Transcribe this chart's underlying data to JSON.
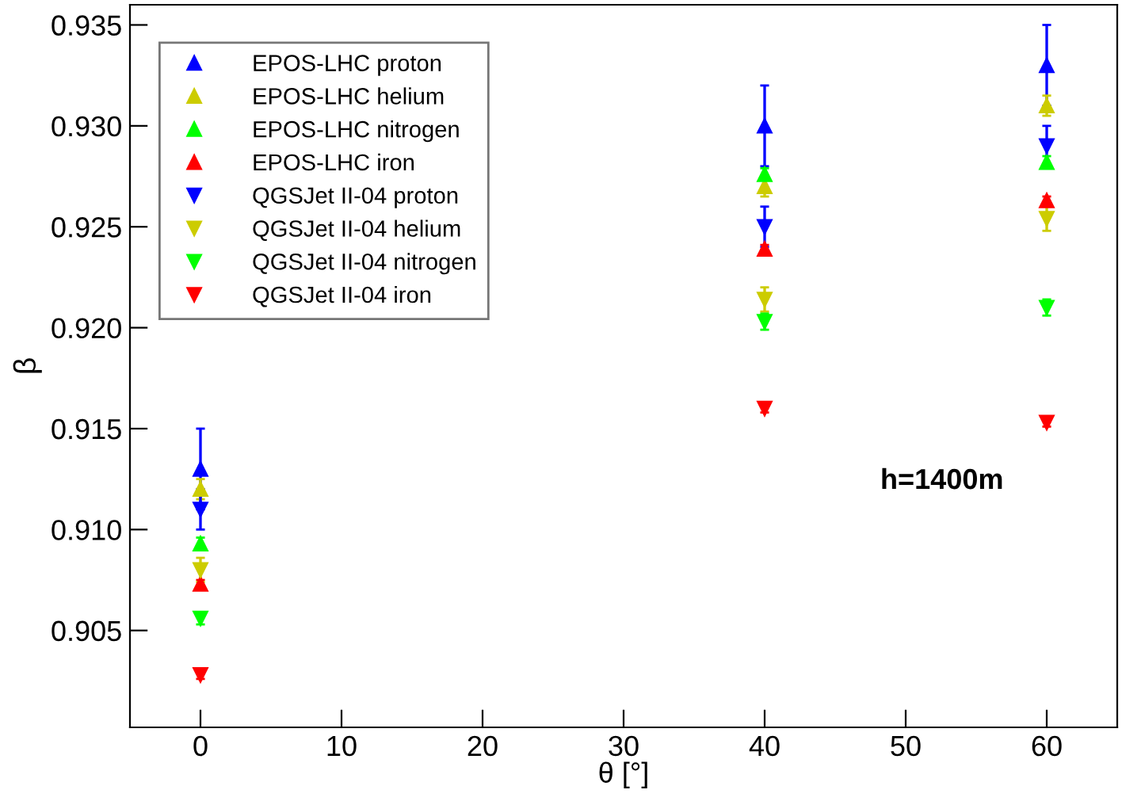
{
  "chart_data": {
    "type": "scatter",
    "xlabel": "θ [°]",
    "ylabel": "β",
    "x": [
      0,
      40,
      60
    ],
    "xlim": [
      -5,
      65
    ],
    "xticks": [
      0,
      10,
      20,
      30,
      40,
      50,
      60
    ],
    "ylim": [
      0.9002,
      0.936
    ],
    "yticks": [
      {
        "value": 0.905,
        "label": "0.905"
      },
      {
        "value": 0.91,
        "label": "0.910"
      },
      {
        "value": 0.915,
        "label": "0.915"
      },
      {
        "value": 0.92,
        "label": "0.920"
      },
      {
        "value": 0.925,
        "label": "0.925"
      },
      {
        "value": 0.93,
        "label": "0.930"
      },
      {
        "value": 0.935,
        "label": "0.935"
      }
    ],
    "grid": false,
    "legend": "top left",
    "annotations": [
      "h=1400m"
    ],
    "series": [
      {
        "name": "EPOS-LHC proton",
        "color": "#0000ff",
        "marker": "triangle",
        "values": [
          0.913,
          0.93,
          0.933
        ],
        "errors": [
          0.002,
          0.002,
          0.002
        ]
      },
      {
        "name": "EPOS-LHC helium",
        "color": "#cccc00",
        "marker": "triangle",
        "values": [
          0.912,
          0.927,
          0.931
        ],
        "errors": [
          0.0005,
          0.0005,
          0.0005
        ]
      },
      {
        "name": "EPOS-LHC nitrogen",
        "color": "#00ff00",
        "marker": "triangle",
        "values": [
          0.9093,
          0.9276,
          0.9282
        ],
        "errors": [
          0.0003,
          0.0003,
          0.0003
        ]
      },
      {
        "name": "EPOS-LHC iron",
        "color": "#ff0000",
        "marker": "triangle",
        "values": [
          0.9073,
          0.9239,
          0.9263
        ],
        "errors": [
          0.0002,
          0.0002,
          0.0002
        ]
      },
      {
        "name": "QGSJet II-04 proton",
        "color": "#0000ff",
        "marker": "triangle_down",
        "values": [
          0.911,
          0.925,
          0.929
        ],
        "errors": [
          0.001,
          0.001,
          0.001
        ]
      },
      {
        "name": "QGSJet II-04 helium",
        "color": "#cccc00",
        "marker": "triangle_down",
        "values": [
          0.908,
          0.9214,
          0.9254
        ],
        "errors": [
          0.0006,
          0.0006,
          0.0006
        ]
      },
      {
        "name": "QGSJet II-04 nitrogen",
        "color": "#00ff00",
        "marker": "triangle_down",
        "values": [
          0.9056,
          0.9203,
          0.921
        ],
        "errors": [
          0.0003,
          0.0004,
          0.0004
        ]
      },
      {
        "name": "QGSJet II-04 iron",
        "color": "#ff0000",
        "marker": "triangle_down",
        "values": [
          0.9028,
          0.916,
          0.9153
        ],
        "errors": [
          0.0002,
          0.0002,
          0.0002
        ]
      }
    ]
  }
}
